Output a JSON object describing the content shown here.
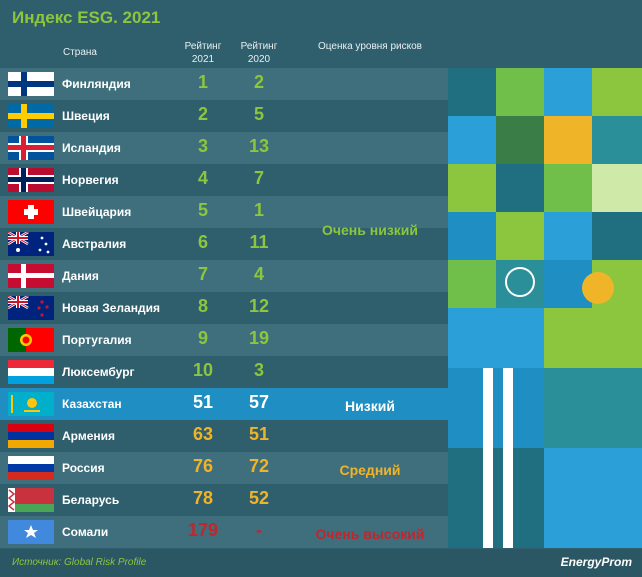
{
  "title": "Индекс ESG. 2021",
  "headers": {
    "country": "Страна",
    "r2021": "Рейтинг 2021",
    "r2020": "Рейтинг 2020",
    "risk": "Оценка уровня рисков"
  },
  "colors": {
    "green": "#8cc63f",
    "orange": "#f0b429",
    "red": "#c0262d",
    "highlight": "#1e8ec3"
  },
  "risk_levels": [
    {
      "label": "Очень низкий",
      "color": "#8cc63f"
    },
    {
      "label": "Низкий",
      "color": "#ffffff"
    },
    {
      "label": "Средний",
      "color": "#f0b429"
    },
    {
      "label": "Очень высокий",
      "color": "#c0262d"
    }
  ],
  "rows": [
    {
      "country": "Финляндия",
      "r2021": "1",
      "r2020": "2",
      "flag": "finland",
      "color": "#8cc63f"
    },
    {
      "country": "Швеция",
      "r2021": "2",
      "r2020": "5",
      "flag": "sweden",
      "color": "#8cc63f"
    },
    {
      "country": "Исландия",
      "r2021": "3",
      "r2020": "13",
      "flag": "iceland",
      "color": "#8cc63f"
    },
    {
      "country": "Норвегия",
      "r2021": "4",
      "r2020": "7",
      "flag": "norway",
      "color": "#8cc63f"
    },
    {
      "country": "Швейцария",
      "r2021": "5",
      "r2020": "1",
      "flag": "switzerland",
      "color": "#8cc63f"
    },
    {
      "country": "Австралия",
      "r2021": "6",
      "r2020": "11",
      "flag": "australia",
      "color": "#8cc63f"
    },
    {
      "country": "Дания",
      "r2021": "7",
      "r2020": "4",
      "flag": "denmark",
      "color": "#8cc63f"
    },
    {
      "country": "Новая Зеландия",
      "r2021": "8",
      "r2020": "12",
      "flag": "new-zealand",
      "color": "#8cc63f"
    },
    {
      "country": "Португалия",
      "r2021": "9",
      "r2020": "19",
      "flag": "portugal",
      "color": "#8cc63f"
    },
    {
      "country": "Люксембург",
      "r2021": "10",
      "r2020": "3",
      "flag": "luxembourg",
      "color": "#8cc63f"
    },
    {
      "country": "Казахстан",
      "r2021": "51",
      "r2020": "57",
      "flag": "kazakhstan",
      "color": "#ffffff"
    },
    {
      "country": "Армения",
      "r2021": "63",
      "r2020": "51",
      "flag": "armenia",
      "color": "#f0b429"
    },
    {
      "country": "Россия",
      "r2021": "76",
      "r2020": "72",
      "flag": "russia",
      "color": "#f0b429"
    },
    {
      "country": "Беларусь",
      "r2021": "78",
      "r2020": "52",
      "flag": "belarus",
      "color": "#f0b429"
    },
    {
      "country": "Сомали",
      "r2021": "179",
      "r2020": "-",
      "flag": "somalia",
      "color": "#c0262d"
    }
  ],
  "footer": {
    "source": "Источник: Global Risk Profile",
    "logo": "EnergyProm"
  },
  "chart_data": {
    "type": "table",
    "title": "Индекс ESG. 2021",
    "columns": [
      "Страна",
      "Рейтинг 2021",
      "Рейтинг 2020",
      "Оценка уровня рисков"
    ],
    "rows": [
      [
        "Финляндия",
        "1",
        "2",
        "Очень низкий"
      ],
      [
        "Швеция",
        "2",
        "5",
        "Очень низкий"
      ],
      [
        "Исландия",
        "3",
        "13",
        "Очень низкий"
      ],
      [
        "Норвегия",
        "4",
        "7",
        "Очень низкий"
      ],
      [
        "Швейцария",
        "5",
        "1",
        "Очень низкий"
      ],
      [
        "Австралия",
        "6",
        "11",
        "Очень низкий"
      ],
      [
        "Дания",
        "7",
        "4",
        "Очень низкий"
      ],
      [
        "Новая Зеландия",
        "8",
        "12",
        "Очень низкий"
      ],
      [
        "Португалия",
        "9",
        "19",
        "Очень низкий"
      ],
      [
        "Люксембург",
        "10",
        "3",
        "Очень низкий"
      ],
      [
        "Казахстан",
        "51",
        "57",
        "Низкий"
      ],
      [
        "Армения",
        "63",
        "51",
        "Средний"
      ],
      [
        "Россия",
        "76",
        "72",
        "Средний"
      ],
      [
        "Беларусь",
        "78",
        "52",
        "Средний"
      ],
      [
        "Сомали",
        "179",
        "-",
        "Очень высокий"
      ]
    ]
  }
}
